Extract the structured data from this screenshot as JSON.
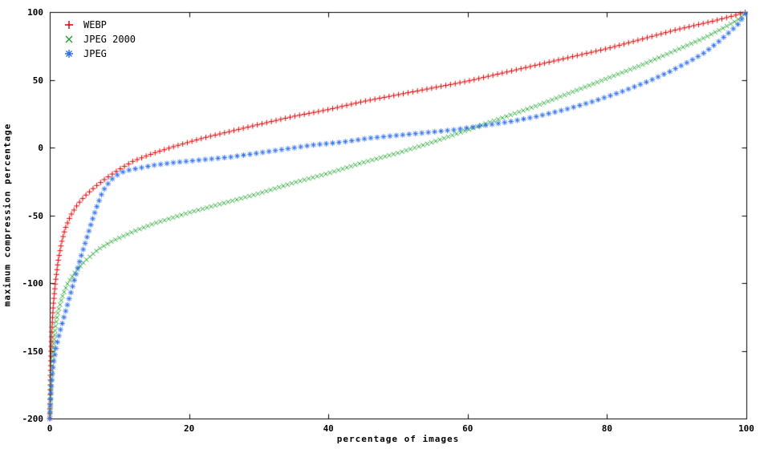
{
  "chart_data": {
    "type": "scatter",
    "title": "",
    "xlabel": "percentage of images",
    "ylabel": "maximum compression percentage",
    "xlim": [
      0,
      100
    ],
    "ylim": [
      -200,
      100
    ],
    "x_ticks": [
      0,
      20,
      40,
      60,
      80,
      100
    ],
    "y_ticks": [
      100,
      50,
      0,
      -50,
      -100,
      -150,
      -200
    ],
    "grid": false,
    "legend_position": "top-left",
    "axis_color": "#000000",
    "background_color": "#ffffff",
    "series": [
      {
        "name": "WEBP",
        "marker": "plus",
        "color": "#dd0000",
        "spacing": 6,
        "points": [
          [
            0,
            -200
          ],
          [
            0.15,
            -158
          ],
          [
            0.3,
            -135
          ],
          [
            0.5,
            -117
          ],
          [
            0.8,
            -100
          ],
          [
            1.2,
            -84
          ],
          [
            1.7,
            -70
          ],
          [
            2.2,
            -60
          ],
          [
            3,
            -50
          ],
          [
            4,
            -42
          ],
          [
            5,
            -36
          ],
          [
            6.5,
            -29
          ],
          [
            8,
            -23
          ],
          [
            10,
            -16
          ],
          [
            12,
            -10
          ],
          [
            15,
            -4
          ],
          [
            18,
            1
          ],
          [
            22,
            7
          ],
          [
            26,
            12
          ],
          [
            30,
            17
          ],
          [
            35,
            23
          ],
          [
            40,
            28
          ],
          [
            45,
            34
          ],
          [
            50,
            39
          ],
          [
            55,
            44
          ],
          [
            60,
            49
          ],
          [
            65,
            55
          ],
          [
            70,
            61
          ],
          [
            75,
            67
          ],
          [
            80,
            73
          ],
          [
            85,
            80
          ],
          [
            90,
            87
          ],
          [
            95,
            93
          ],
          [
            98,
            97
          ],
          [
            100,
            100
          ]
        ]
      },
      {
        "name": "JPEG 2000",
        "marker": "cross",
        "color": "#1fa32c",
        "spacing": 5.5,
        "points": [
          [
            0,
            -200
          ],
          [
            0.2,
            -170
          ],
          [
            0.5,
            -148
          ],
          [
            0.8,
            -133
          ],
          [
            1.2,
            -121
          ],
          [
            1.8,
            -110
          ],
          [
            2.5,
            -101
          ],
          [
            3.5,
            -93
          ],
          [
            5,
            -84
          ],
          [
            7,
            -75
          ],
          [
            9,
            -69
          ],
          [
            12,
            -62
          ],
          [
            15,
            -56
          ],
          [
            20,
            -48
          ],
          [
            25,
            -41
          ],
          [
            30,
            -34
          ],
          [
            35,
            -26
          ],
          [
            40,
            -19
          ],
          [
            45,
            -11
          ],
          [
            50,
            -4
          ],
          [
            55,
            4
          ],
          [
            60,
            13
          ],
          [
            65,
            22
          ],
          [
            70,
            31
          ],
          [
            75,
            41
          ],
          [
            80,
            51
          ],
          [
            85,
            61
          ],
          [
            90,
            72
          ],
          [
            94,
            81
          ],
          [
            97,
            89
          ],
          [
            99,
            95
          ],
          [
            100,
            100
          ]
        ]
      },
      {
        "name": "JPEG",
        "marker": "asterisk",
        "color": "#2f6fe8",
        "spacing": 8,
        "points": [
          [
            0,
            -200
          ],
          [
            0.2,
            -178
          ],
          [
            0.5,
            -160
          ],
          [
            0.9,
            -148
          ],
          [
            1.4,
            -137
          ],
          [
            2,
            -126
          ],
          [
            2.6,
            -115
          ],
          [
            3.2,
            -104
          ],
          [
            3.8,
            -93
          ],
          [
            4.4,
            -82
          ],
          [
            5,
            -72
          ],
          [
            5.6,
            -62
          ],
          [
            6.2,
            -52
          ],
          [
            6.8,
            -43
          ],
          [
            7.4,
            -35
          ],
          [
            8,
            -29
          ],
          [
            9,
            -23
          ],
          [
            10,
            -19
          ],
          [
            11,
            -17
          ],
          [
            13,
            -15
          ],
          [
            15,
            -13
          ],
          [
            18,
            -11
          ],
          [
            22,
            -9
          ],
          [
            26,
            -7
          ],
          [
            30,
            -4
          ],
          [
            34,
            -1
          ],
          [
            38,
            2
          ],
          [
            42,
            4
          ],
          [
            46,
            7
          ],
          [
            50,
            9
          ],
          [
            54,
            11
          ],
          [
            58,
            13
          ],
          [
            62,
            16
          ],
          [
            66,
            19
          ],
          [
            70,
            23
          ],
          [
            74,
            28
          ],
          [
            78,
            34
          ],
          [
            82,
            41
          ],
          [
            86,
            49
          ],
          [
            89,
            56
          ],
          [
            92,
            64
          ],
          [
            94,
            70
          ],
          [
            96,
            78
          ],
          [
            98,
            87
          ],
          [
            99,
            92
          ],
          [
            100,
            100
          ]
        ]
      }
    ]
  }
}
